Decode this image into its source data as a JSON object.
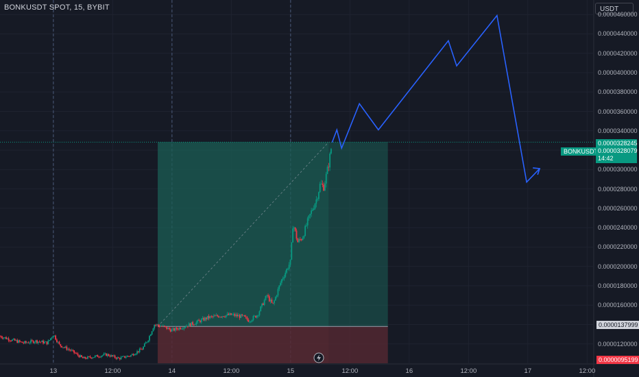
{
  "header": {
    "title": "BONKUSDT SPOT, 15, BYBIT",
    "currency": "USDT"
  },
  "symbol_tag": "BONKUSDT",
  "last_price": {
    "primary": "0.0000328245",
    "secondary": "0.0000328079",
    "countdown": "14:42"
  },
  "labels": {
    "entry": "0.0000137999",
    "stop": "0.0000095199"
  },
  "colors": {
    "background": "#161a25",
    "up": "#089981",
    "down": "#f23645",
    "projection": "#2962ff",
    "profit_zone": "#1b5e55",
    "loss_zone": "#5a2a33"
  },
  "chart_data": {
    "type": "candlestick",
    "y_axis": {
      "min": 1e-05,
      "max": 4.75e-05,
      "ticks": [
        "0.0000120000",
        "0.0000140000",
        "0.0000160000",
        "0.0000180000",
        "0.0000200000",
        "0.0000220000",
        "0.0000240000",
        "0.0000260000",
        "0.0000280000",
        "0.0000300000",
        "0.0000320000",
        "0.0000340000",
        "0.0000360000",
        "0.0000380000",
        "0.0000400000",
        "0.0000420000",
        "0.0000440000",
        "0.0000460000"
      ]
    },
    "x_axis": {
      "range_days": [
        12.55,
        17.55
      ],
      "ticks": [
        {
          "label": "13",
          "day": 13.0
        },
        {
          "label": "12:00",
          "day": 13.5
        },
        {
          "label": "14",
          "day": 14.0
        },
        {
          "label": "12:00",
          "day": 14.5
        },
        {
          "label": "15",
          "day": 15.0
        },
        {
          "label": "12:00",
          "day": 15.5
        },
        {
          "label": "16",
          "day": 16.0
        },
        {
          "label": "12:00",
          "day": 16.5
        },
        {
          "label": "17",
          "day": 17.0
        },
        {
          "label": "12:00",
          "day": 17.5
        }
      ]
    },
    "session_breaks": [
      13.0,
      14.0,
      15.0
    ],
    "price_path": [
      [
        12.55,
        1.28e-05
      ],
      [
        12.65,
        1.24e-05
      ],
      [
        12.75,
        1.21e-05
      ],
      [
        12.85,
        1.23e-05
      ],
      [
        12.95,
        1.21e-05
      ],
      [
        13.0,
        1.3e-05
      ],
      [
        13.05,
        1.19e-05
      ],
      [
        13.15,
        1.13e-05
      ],
      [
        13.25,
        1.05e-05
      ],
      [
        13.35,
        1.07e-05
      ],
      [
        13.45,
        1.09e-05
      ],
      [
        13.55,
        1.05e-05
      ],
      [
        13.65,
        1.08e-05
      ],
      [
        13.75,
        1.15e-05
      ],
      [
        13.8,
        1.25e-05
      ],
      [
        13.85,
        1.4e-05
      ],
      [
        13.92,
        1.38e-05
      ],
      [
        14.0,
        1.34e-05
      ],
      [
        14.1,
        1.38e-05
      ],
      [
        14.2,
        1.42e-05
      ],
      [
        14.3,
        1.47e-05
      ],
      [
        14.4,
        1.49e-05
      ],
      [
        14.5,
        1.5e-05
      ],
      [
        14.6,
        1.48e-05
      ],
      [
        14.65,
        1.44e-05
      ],
      [
        14.72,
        1.5e-05
      ],
      [
        14.8,
        1.7e-05
      ],
      [
        14.85,
        1.6e-05
      ],
      [
        14.92,
        1.85e-05
      ],
      [
        14.96,
        1.95e-05
      ],
      [
        15.0,
        2.05e-05
      ],
      [
        15.02,
        2.45e-05
      ],
      [
        15.06,
        2.25e-05
      ],
      [
        15.1,
        2.3e-05
      ],
      [
        15.14,
        2.45e-05
      ],
      [
        15.18,
        2.58e-05
      ],
      [
        15.22,
        2.7e-05
      ],
      [
        15.25,
        2.85e-05
      ],
      [
        15.28,
        2.82e-05
      ],
      [
        15.32,
        3.05e-05
      ],
      [
        15.35,
        3.28e-05
      ]
    ],
    "projection": [
      [
        15.35,
        3.28e-05
      ],
      [
        15.39,
        3.41e-05
      ],
      [
        15.43,
        3.22e-05
      ],
      [
        15.58,
        3.68e-05
      ],
      [
        15.74,
        3.41e-05
      ],
      [
        16.33,
        4.33e-05
      ],
      [
        16.4,
        4.07e-05
      ],
      [
        16.74,
        4.59e-05
      ],
      [
        16.99,
        2.87e-05
      ],
      [
        17.1,
        3.01e-05
      ]
    ],
    "position": {
      "start_day": 13.88,
      "end_day": 15.82,
      "entry": 1.37999e-05,
      "target": 3.28245e-05,
      "stop": 9.5199e-06,
      "filled_until_day": 15.32
    },
    "last_price": 3.28245e-05
  }
}
